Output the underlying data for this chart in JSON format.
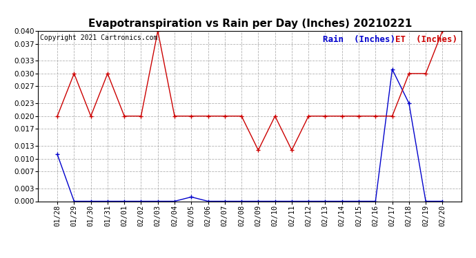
{
  "title": "Evapotranspiration vs Rain per Day (Inches) 20210221",
  "copyright": "Copyright 2021 Cartronics.com",
  "legend_rain": "Rain  (Inches)",
  "legend_et": "ET  (Inches)",
  "x_labels": [
    "01/28",
    "01/29",
    "01/30",
    "01/31",
    "02/01",
    "02/02",
    "02/03",
    "02/04",
    "02/05",
    "02/06",
    "02/07",
    "02/08",
    "02/09",
    "02/10",
    "02/11",
    "02/12",
    "02/13",
    "02/14",
    "02/15",
    "02/16",
    "02/17",
    "02/18",
    "02/19",
    "02/20"
  ],
  "rain_data": [
    0.011,
    0.0,
    0.0,
    0.0,
    0.0,
    0.0,
    0.0,
    0.0,
    0.001,
    0.0,
    0.0,
    0.0,
    0.0,
    0.0,
    0.0,
    0.0,
    0.0,
    0.0,
    0.0,
    0.0,
    0.031,
    0.023,
    0.0,
    0.0
  ],
  "et_data": [
    0.02,
    0.03,
    0.02,
    0.03,
    0.02,
    0.02,
    0.04,
    0.02,
    0.02,
    0.02,
    0.02,
    0.02,
    0.012,
    0.02,
    0.012,
    0.02,
    0.02,
    0.02,
    0.02,
    0.02,
    0.02,
    0.03,
    0.03,
    0.04
  ],
  "ylim": [
    0.0,
    0.04
  ],
  "yticks": [
    0.0,
    0.003,
    0.007,
    0.01,
    0.013,
    0.017,
    0.02,
    0.023,
    0.027,
    0.03,
    0.033,
    0.037,
    0.04
  ],
  "rain_color": "#0000cc",
  "et_color": "#cc0000",
  "grid_color": "#aaaaaa",
  "bg_color": "#ffffff",
  "title_fontsize": 11,
  "tick_fontsize": 7.5,
  "legend_fontsize": 9,
  "copyright_fontsize": 7
}
